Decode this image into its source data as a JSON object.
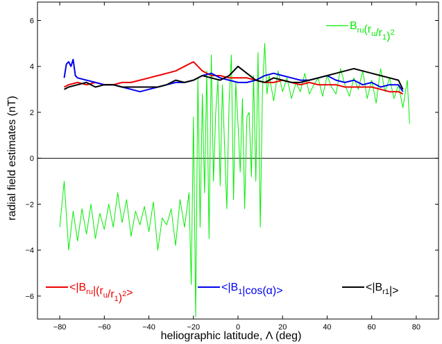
{
  "chart_data": {
    "type": "line",
    "xlabel": "heliographic latitude, Λ (deg)",
    "ylabel": "radial field estimates (nT)",
    "xlim": [
      -90,
      90
    ],
    "ylim": [
      -7,
      6.8
    ],
    "xticks": [
      -80,
      -60,
      -40,
      -20,
      0,
      20,
      40,
      60,
      80
    ],
    "yticks": [
      -6,
      -4,
      -2,
      0,
      2,
      4,
      6
    ],
    "xtick_labels": [
      "−80",
      "−60",
      "−40",
      "−20",
      "0",
      "20",
      "40",
      "60",
      "80"
    ],
    "ytick_labels": [
      "−6",
      "−4",
      "−2",
      "0",
      "2",
      "4",
      "6"
    ],
    "grid": false,
    "zero_line": true,
    "series": [
      {
        "key": "green",
        "color": "#00ee00",
        "legend": {
          "main": "B",
          "sub1": "ru",
          "mid": "(r",
          "sub2": "u",
          "mid2": "/r",
          "sub3": "1",
          "end": ")",
          "sup": "2"
        },
        "x": [
          -80,
          -78,
          -76,
          -74,
          -72,
          -70,
          -68,
          -66,
          -64,
          -62,
          -60,
          -58,
          -56,
          -54,
          -52,
          -50,
          -48,
          -46,
          -44,
          -42,
          -40,
          -38,
          -36,
          -34,
          -32,
          -30,
          -28,
          -26,
          -24,
          -22,
          -21,
          -20,
          -19,
          -18,
          -17,
          -16,
          -15,
          -14,
          -13,
          -12,
          -11,
          -10,
          -9,
          -8,
          -7,
          -6,
          -5,
          -4,
          -3,
          -2,
          -1,
          0,
          1,
          2,
          3,
          4,
          5,
          6,
          7,
          8,
          9,
          10,
          11,
          12,
          13,
          14,
          16,
          18,
          20,
          22,
          24,
          26,
          28,
          30,
          32,
          34,
          36,
          38,
          40,
          42,
          44,
          46,
          48,
          50,
          52,
          54,
          56,
          58,
          60,
          62,
          64,
          66,
          68,
          70,
          72,
          74,
          76,
          77
        ],
        "y": [
          -3.0,
          -1.0,
          -4.0,
          -2.3,
          -3.6,
          -2.2,
          -3.3,
          -2.0,
          -3.5,
          -2.4,
          -3.1,
          -2.0,
          -3.0,
          -1.5,
          -2.8,
          -1.8,
          -3.4,
          -2.3,
          -2.9,
          -2.1,
          -3.2,
          -1.9,
          -4.0,
          -2.6,
          -2.9,
          -2.2,
          -3.8,
          -1.8,
          -3.0,
          -1.5,
          -5.5,
          1.8,
          -6.9,
          3.5,
          -3.0,
          2.8,
          -1.5,
          3.8,
          -3.5,
          4.5,
          -1.0,
          2.0,
          3.4,
          -1.2,
          3.2,
          0.5,
          -2.2,
          2.5,
          4.5,
          -1.8,
          3.3,
          1.5,
          -0.6,
          2.6,
          -2.2,
          1.8,
          2.0,
          -0.8,
          3.6,
          -1.0,
          4.6,
          -3.0,
          3.0,
          5.0,
          2.8,
          3.6,
          2.5,
          3.8,
          2.9,
          3.5,
          2.6,
          3.3,
          2.9,
          3.7,
          2.8,
          3.2,
          3.5,
          2.7,
          3.6,
          3.1,
          2.8,
          3.9,
          3.2,
          2.7,
          3.5,
          3.0,
          3.8,
          2.6,
          3.4,
          2.4,
          3.9,
          2.9,
          3.5,
          2.6,
          3.2,
          2.2,
          3.4,
          1.5
        ]
      },
      {
        "key": "red",
        "color": "#ee0000",
        "legend": {
          "prefix": "<|B",
          "sub1": "ru",
          "mid": "|(r",
          "sub2": "u",
          "mid2": "/r",
          "sub3": "1",
          "end": ")",
          "sup": "2",
          "suffix": ">"
        },
        "x": [
          -78,
          -76,
          -72,
          -68,
          -64,
          -60,
          -56,
          -52,
          -48,
          -44,
          -40,
          -36,
          -32,
          -28,
          -24,
          -22,
          -20,
          -18,
          -16,
          -12,
          -8,
          -4,
          0,
          4,
          8,
          12,
          16,
          20,
          24,
          28,
          32,
          36,
          40,
          44,
          48,
          52,
          56,
          60,
          64,
          68,
          72,
          74
        ],
        "y": [
          3.1,
          3.2,
          3.3,
          3.2,
          3.3,
          3.2,
          3.2,
          3.3,
          3.3,
          3.4,
          3.5,
          3.6,
          3.7,
          3.8,
          4.0,
          4.1,
          4.2,
          4.0,
          3.8,
          3.6,
          3.6,
          3.5,
          3.5,
          3.5,
          3.4,
          3.3,
          3.3,
          3.4,
          3.3,
          3.2,
          3.3,
          3.2,
          3.2,
          3.2,
          3.1,
          3.1,
          3.1,
          3.1,
          3.0,
          2.9,
          2.9,
          2.8
        ]
      },
      {
        "key": "blue",
        "color": "#0000ee",
        "legend": {
          "prefix": "<|B",
          "sub1": "1",
          "suffix": "|cos(α)>"
        },
        "x": [
          -78,
          -77,
          -76,
          -75,
          -74,
          -73,
          -72,
          -68,
          -64,
          -60,
          -56,
          -52,
          -48,
          -44,
          -40,
          -36,
          -32,
          -28,
          -24,
          -20,
          -16,
          -12,
          -8,
          -4,
          0,
          4,
          8,
          12,
          16,
          20,
          24,
          28,
          32,
          36,
          40,
          44,
          48,
          52,
          56,
          60,
          64,
          68,
          72,
          74
        ],
        "y": [
          3.5,
          4.1,
          4.2,
          4.0,
          4.3,
          3.6,
          3.5,
          3.4,
          3.3,
          3.2,
          3.2,
          3.1,
          3.0,
          2.9,
          3.0,
          3.1,
          3.2,
          3.3,
          3.3,
          3.4,
          3.6,
          3.7,
          3.5,
          3.4,
          3.3,
          3.3,
          3.4,
          3.6,
          3.7,
          3.6,
          3.5,
          3.4,
          3.4,
          3.5,
          3.6,
          3.4,
          3.3,
          3.4,
          3.2,
          3.3,
          3.1,
          3.2,
          3.2,
          2.9
        ]
      },
      {
        "key": "black",
        "color": "#000000",
        "legend": {
          "prefix": "<|B",
          "sub1": "r1",
          "suffix": "|>"
        },
        "x": [
          -78,
          -76,
          -72,
          -68,
          -64,
          -60,
          -56,
          -52,
          -48,
          -44,
          -40,
          -36,
          -32,
          -28,
          -24,
          -20,
          -16,
          -12,
          -8,
          -4,
          0,
          4,
          8,
          12,
          16,
          20,
          24,
          28,
          32,
          36,
          40,
          44,
          48,
          52,
          56,
          60,
          64,
          68,
          72,
          74
        ],
        "y": [
          3.0,
          3.1,
          3.2,
          3.3,
          3.1,
          3.2,
          3.2,
          3.1,
          3.1,
          3.1,
          3.1,
          3.1,
          3.2,
          3.4,
          3.3,
          3.4,
          3.6,
          3.5,
          3.4,
          3.6,
          4.0,
          3.7,
          3.4,
          3.3,
          3.5,
          3.4,
          3.3,
          3.3,
          3.4,
          3.5,
          3.6,
          3.7,
          3.8,
          3.9,
          3.8,
          3.7,
          3.6,
          3.5,
          3.4,
          3.0
        ]
      }
    ]
  }
}
